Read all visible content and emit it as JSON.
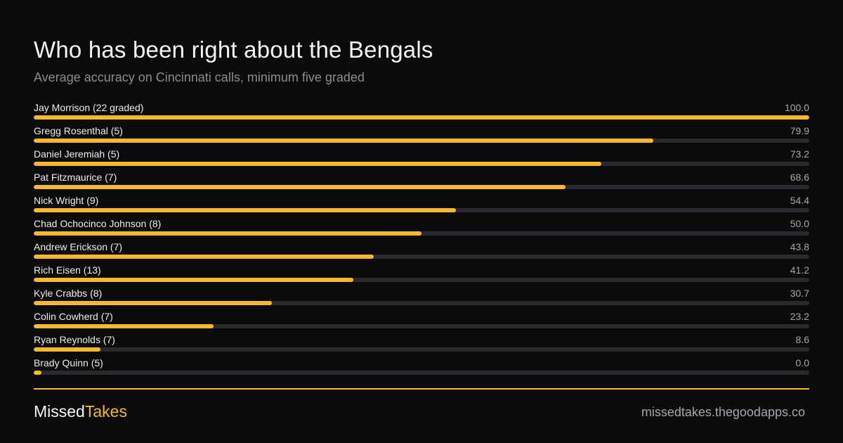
{
  "chart_data": {
    "type": "bar",
    "orientation": "horizontal",
    "title": "Who has been right about the Bengals",
    "subtitle": "Average accuracy on Cincinnati calls, minimum five graded",
    "xlim": [
      0,
      100
    ],
    "grid": false,
    "colors": {
      "bar": "#f5b82e",
      "track": "#2a2a2e"
    },
    "categories": [
      "Jay Morrison (22 graded)",
      "Gregg Rosenthal (5)",
      "Daniel Jeremiah (5)",
      "Pat Fitzmaurice (7)",
      "Nick Wright (9)",
      "Chad Ochocinco Johnson (8)",
      "Andrew Erickson (7)",
      "Rich Eisen (13)",
      "Kyle Crabbs (8)",
      "Colin Cowherd (7)",
      "Ryan Reynolds (7)",
      "Brady Quinn (5)"
    ],
    "values": [
      100.0,
      79.9,
      73.2,
      68.6,
      54.4,
      50.0,
      43.8,
      41.2,
      30.7,
      23.2,
      8.6,
      0.0
    ],
    "value_labels": [
      "100.0",
      "79.9",
      "73.2",
      "68.6",
      "54.4",
      "50.0",
      "43.8",
      "41.2",
      "30.7",
      "23.2",
      "8.6",
      "0.0"
    ]
  },
  "footer": {
    "brand_main": "Missed",
    "brand_accent": "Takes",
    "site": "missedtakes.thegoodapps.co"
  }
}
